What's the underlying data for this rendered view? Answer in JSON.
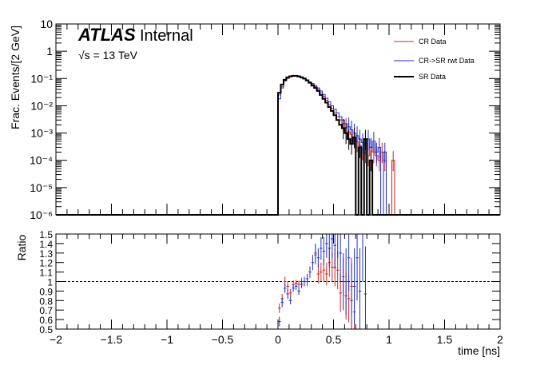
{
  "annotations": {
    "atlas": "ATLAS",
    "internal": "Internal",
    "energy": "√s = 13 TeV"
  },
  "colors": {
    "cr": "#d62020",
    "crsr": "#1f2fd0",
    "sr": "#000000",
    "reference_line": "#000000"
  },
  "chart_data": [
    {
      "type": "line",
      "title": "",
      "xlabel": "",
      "ylabel": "Frac. Events/[2 GeV]",
      "xlim": [
        -2,
        2
      ],
      "ylim": [
        1e-06,
        10
      ],
      "yscale": "log",
      "y_tick_labels": [
        "10⁻⁶",
        "10⁻⁵",
        "10⁻⁴",
        "10⁻³",
        "10⁻²",
        "10⁻¹",
        "1",
        "10"
      ],
      "x_tick_labels": [
        "−2",
        "−1.5",
        "−1",
        "−0.5",
        "0",
        "0.5",
        "1",
        "1.5",
        "2"
      ],
      "legend_position": "top-right",
      "bin_width": 0.025,
      "series": [
        {
          "name": "CR Data",
          "color": "#d62020",
          "bin_starts": [
            0.0,
            0.025,
            0.05,
            0.075,
            0.1,
            0.125,
            0.15,
            0.175,
            0.2,
            0.225,
            0.25,
            0.275,
            0.3,
            0.325,
            0.35,
            0.375,
            0.4,
            0.425,
            0.45,
            0.475,
            0.5,
            0.525,
            0.55,
            0.575,
            0.6,
            0.625,
            0.65,
            0.675,
            0.7,
            0.725,
            0.75,
            0.775,
            0.8,
            0.825,
            0.85,
            0.875,
            0.9,
            0.925,
            0.95,
            0.975,
            1.0,
            1.025,
            1.05,
            1.075,
            1.1,
            1.125
          ],
          "values": [
            0.025,
            0.05,
            0.08,
            0.1,
            0.115,
            0.12,
            0.12,
            0.115,
            0.105,
            0.095,
            0.085,
            0.07,
            0.06,
            0.05,
            0.04,
            0.03,
            0.022,
            0.016,
            0.011,
            0.008,
            0.0055,
            0.004,
            0.003,
            0.0022,
            0.0016,
            0.0011,
            0.0009,
            0.0007,
            0.0005,
            0.00035,
            0.00025,
            0.0002,
            0.00015,
            0.0003,
            0.0002,
            0.00015,
            0.0001,
            0.0002,
            0.0001,
            0.0,
            0.0,
            0.0001,
            0.0,
            0.0,
            0.0,
            0.0
          ]
        },
        {
          "name": "CR->SR rwt Data",
          "color": "#1f2fd0",
          "bin_starts": [
            0.0,
            0.025,
            0.05,
            0.075,
            0.1,
            0.125,
            0.15,
            0.175,
            0.2,
            0.225,
            0.25,
            0.275,
            0.3,
            0.325,
            0.35,
            0.375,
            0.4,
            0.425,
            0.45,
            0.475,
            0.5,
            0.525,
            0.55,
            0.575,
            0.6,
            0.625,
            0.65,
            0.675,
            0.7,
            0.725,
            0.75,
            0.775,
            0.8,
            0.825,
            0.85,
            0.875,
            0.9,
            0.925,
            0.95,
            0.975,
            1.0
          ],
          "values": [
            0.018,
            0.045,
            0.085,
            0.11,
            0.125,
            0.13,
            0.13,
            0.125,
            0.115,
            0.1,
            0.09,
            0.075,
            0.065,
            0.055,
            0.045,
            0.035,
            0.026,
            0.019,
            0.014,
            0.01,
            0.0075,
            0.0055,
            0.004,
            0.003,
            0.0022,
            0.0017,
            0.0013,
            0.001,
            0.0008,
            0.0006,
            0.00045,
            0.0004,
            0.0006,
            0.0003,
            0.0005,
            0.0002,
            0.0003,
            0.0,
            0.0002,
            0.0,
            0.0
          ]
        },
        {
          "name": "SR Data",
          "color": "#000000",
          "bin_starts": [
            0.0,
            0.025,
            0.05,
            0.075,
            0.1,
            0.125,
            0.15,
            0.175,
            0.2,
            0.225,
            0.25,
            0.275,
            0.3,
            0.325,
            0.35,
            0.375,
            0.4,
            0.425,
            0.45,
            0.475,
            0.5,
            0.525,
            0.55,
            0.575,
            0.6,
            0.625,
            0.65,
            0.675,
            0.7,
            0.725,
            0.75,
            0.775,
            0.8,
            0.825,
            0.85,
            0.875,
            0.9
          ],
          "values": [
            0.03,
            0.06,
            0.09,
            0.11,
            0.12,
            0.125,
            0.125,
            0.12,
            0.11,
            0.1,
            0.085,
            0.07,
            0.055,
            0.045,
            0.035,
            0.025,
            0.018,
            0.013,
            0.009,
            0.0065,
            0.0045,
            0.003,
            0.002,
            0.0015,
            0.001,
            0.0006,
            0.0004,
            0.0007,
            0.0,
            0.0003,
            0.0,
            0.0006,
            0.0,
            0.0001,
            0.0,
            0.0,
            0.0
          ]
        }
      ]
    },
    {
      "type": "scatter",
      "title": "",
      "xlabel": "time [ns]",
      "ylabel": "Ratio",
      "xlim": [
        -2,
        2
      ],
      "ylim": [
        0.5,
        1.5
      ],
      "y_tick_labels": [
        "0.5",
        "0.6",
        "0.7",
        "0.8",
        "0.9",
        "1",
        "1.1",
        "1.2",
        "1.3",
        "1.4",
        "1.5"
      ],
      "x_tick_labels": [
        "−2",
        "−1.5",
        "−1",
        "−0.5",
        "0",
        "0.5",
        "1",
        "1.5",
        "2"
      ],
      "reference_line": 1.0,
      "series": [
        {
          "name": "CR Data",
          "color": "#d62020",
          "x": [
            0.0125,
            0.0375,
            0.0625,
            0.0875,
            0.1125,
            0.1375,
            0.1625,
            0.1875,
            0.2125,
            0.2375,
            0.2625,
            0.3375,
            0.3625,
            0.3875,
            0.4125,
            0.4375,
            0.4625,
            0.4875,
            0.5125,
            0.5375,
            0.5625,
            0.5875,
            0.6125,
            0.6375,
            0.6625,
            0.6875
          ],
          "y": [
            0.72,
            0.82,
            1.0,
            0.95,
            0.88,
            0.97,
            0.98,
            0.97,
            1.0,
            1.0,
            1.0,
            1.28,
            1.08,
            1.1,
            1.12,
            1.08,
            1.2,
            1.15,
            1.15,
            1.12,
            0.88,
            1.05,
            0.85,
            0.82,
            0.95,
            0.68
          ],
          "yerr": [
            0.05,
            0.05,
            0.05,
            0.05,
            0.04,
            0.04,
            0.04,
            0.04,
            0.04,
            0.05,
            0.05,
            0.1,
            0.1,
            0.1,
            0.12,
            0.12,
            0.15,
            0.15,
            0.2,
            0.2,
            0.2,
            0.2,
            0.25,
            0.25,
            0.3,
            0.3
          ]
        },
        {
          "name": "CR->SR rwt Data",
          "color": "#1f2fd0",
          "x": [
            0.0125,
            0.0375,
            0.0625,
            0.0875,
            0.1125,
            0.1375,
            0.1625,
            0.1875,
            0.2125,
            0.2375,
            0.2625,
            0.2875,
            0.3125,
            0.3375,
            0.3625,
            0.3875,
            0.4125,
            0.4375,
            0.4625,
            0.4875,
            0.5125,
            0.5375,
            0.5625,
            0.5875,
            0.6125,
            0.6375,
            0.6625,
            0.6875,
            0.7125,
            0.7375,
            0.7625,
            0.7875
          ],
          "y": [
            0.58,
            0.78,
            0.93,
            0.87,
            0.8,
            0.93,
            0.95,
            0.9,
            0.97,
            1.0,
            1.03,
            1.1,
            1.2,
            1.3,
            1.25,
            1.35,
            1.32,
            1.4,
            1.35,
            1.45,
            1.38,
            1.5,
            1.3,
            1.0,
            1.0,
            1.25,
            0.8,
            0.95,
            1.25,
            0.9,
            1.5,
            0.87
          ],
          "yerr": [
            0.05,
            0.05,
            0.05,
            0.05,
            0.04,
            0.04,
            0.04,
            0.04,
            0.04,
            0.05,
            0.05,
            0.06,
            0.08,
            0.1,
            0.1,
            0.12,
            0.15,
            0.15,
            0.2,
            0.2,
            0.25,
            0.25,
            0.3,
            0.3,
            0.35,
            0.35,
            0.4,
            0.4,
            0.45,
            0.45,
            0.5,
            0.5
          ]
        }
      ]
    }
  ]
}
